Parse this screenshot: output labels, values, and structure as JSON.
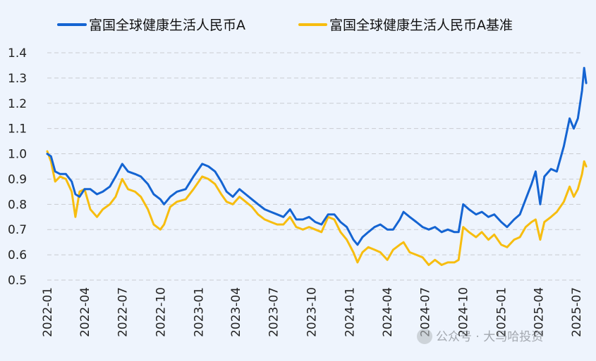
{
  "chart_data": {
    "type": "line",
    "title": "",
    "xlabel": "",
    "ylabel": "",
    "ylim": [
      0.5,
      1.4
    ],
    "yticks": [
      0.5,
      0.6,
      0.7,
      0.8,
      0.9,
      1.0,
      1.1,
      1.2,
      1.3,
      1.4
    ],
    "ytick_labels": [
      "0.5",
      "0.6",
      "0.7",
      "0.8",
      "0.9",
      "1.0",
      "1.1",
      "1.2",
      "1.3",
      "1.4"
    ],
    "xticks": [
      "2022-01",
      "2022-04",
      "2022-07",
      "2022-10",
      "2023-01",
      "2023-04",
      "2023-07",
      "2023-10",
      "2024-01",
      "2024-04",
      "2024-07",
      "2024-10",
      "2025-01",
      "2025-04",
      "2025-07"
    ],
    "grid": "horizontal dashed",
    "legend_position": "top",
    "series": [
      {
        "name": "富国全球健康生活人民币A",
        "color": "#1464d2",
        "points": [
          [
            "2022-01-01",
            1.0
          ],
          [
            "2022-01-10",
            0.99
          ],
          [
            "2022-01-20",
            0.93
          ],
          [
            "2022-02-01",
            0.92
          ],
          [
            "2022-02-15",
            0.92
          ],
          [
            "2022-03-01",
            0.89
          ],
          [
            "2022-03-10",
            0.84
          ],
          [
            "2022-03-20",
            0.83
          ],
          [
            "2022-04-01",
            0.86
          ],
          [
            "2022-04-15",
            0.86
          ],
          [
            "2022-05-01",
            0.84
          ],
          [
            "2022-05-15",
            0.85
          ],
          [
            "2022-06-01",
            0.87
          ],
          [
            "2022-06-15",
            0.91
          ],
          [
            "2022-07-01",
            0.96
          ],
          [
            "2022-07-15",
            0.93
          ],
          [
            "2022-08-01",
            0.92
          ],
          [
            "2022-08-15",
            0.91
          ],
          [
            "2022-09-01",
            0.88
          ],
          [
            "2022-09-15",
            0.84
          ],
          [
            "2022-10-01",
            0.82
          ],
          [
            "2022-10-10",
            0.8
          ],
          [
            "2022-10-25",
            0.83
          ],
          [
            "2022-11-10",
            0.85
          ],
          [
            "2022-12-01",
            0.86
          ],
          [
            "2022-12-20",
            0.91
          ],
          [
            "2023-01-10",
            0.96
          ],
          [
            "2023-01-25",
            0.95
          ],
          [
            "2023-02-10",
            0.93
          ],
          [
            "2023-02-25",
            0.89
          ],
          [
            "2023-03-10",
            0.85
          ],
          [
            "2023-03-25",
            0.83
          ],
          [
            "2023-04-10",
            0.86
          ],
          [
            "2023-04-25",
            0.84
          ],
          [
            "2023-05-10",
            0.82
          ],
          [
            "2023-05-25",
            0.8
          ],
          [
            "2023-06-10",
            0.78
          ],
          [
            "2023-06-25",
            0.77
          ],
          [
            "2023-07-10",
            0.76
          ],
          [
            "2023-07-25",
            0.75
          ],
          [
            "2023-08-10",
            0.78
          ],
          [
            "2023-08-25",
            0.74
          ],
          [
            "2023-09-10",
            0.74
          ],
          [
            "2023-09-25",
            0.75
          ],
          [
            "2023-10-10",
            0.73
          ],
          [
            "2023-10-25",
            0.72
          ],
          [
            "2023-11-10",
            0.76
          ],
          [
            "2023-11-25",
            0.76
          ],
          [
            "2023-12-10",
            0.73
          ],
          [
            "2023-12-25",
            0.71
          ],
          [
            "2024-01-10",
            0.66
          ],
          [
            "2024-01-20",
            0.64
          ],
          [
            "2024-02-01",
            0.67
          ],
          [
            "2024-02-15",
            0.69
          ],
          [
            "2024-03-01",
            0.71
          ],
          [
            "2024-03-15",
            0.72
          ],
          [
            "2024-04-01",
            0.7
          ],
          [
            "2024-04-15",
            0.7
          ],
          [
            "2024-05-01",
            0.74
          ],
          [
            "2024-05-10",
            0.77
          ],
          [
            "2024-05-25",
            0.75
          ],
          [
            "2024-06-10",
            0.73
          ],
          [
            "2024-06-25",
            0.71
          ],
          [
            "2024-07-10",
            0.7
          ],
          [
            "2024-07-25",
            0.71
          ],
          [
            "2024-08-10",
            0.69
          ],
          [
            "2024-08-25",
            0.7
          ],
          [
            "2024-09-10",
            0.69
          ],
          [
            "2024-09-20",
            0.69
          ],
          [
            "2024-10-01",
            0.8
          ],
          [
            "2024-10-15",
            0.78
          ],
          [
            "2024-11-01",
            0.76
          ],
          [
            "2024-11-15",
            0.77
          ],
          [
            "2024-12-01",
            0.75
          ],
          [
            "2024-12-15",
            0.76
          ],
          [
            "2025-01-01",
            0.73
          ],
          [
            "2025-01-15",
            0.71
          ],
          [
            "2025-02-01",
            0.74
          ],
          [
            "2025-02-15",
            0.76
          ],
          [
            "2025-03-01",
            0.82
          ],
          [
            "2025-03-15",
            0.88
          ],
          [
            "2025-03-25",
            0.93
          ],
          [
            "2025-04-05",
            0.8
          ],
          [
            "2025-04-15",
            0.91
          ],
          [
            "2025-05-01",
            0.94
          ],
          [
            "2025-05-15",
            0.93
          ],
          [
            "2025-06-01",
            1.03
          ],
          [
            "2025-06-15",
            1.14
          ],
          [
            "2025-06-25",
            1.1
          ],
          [
            "2025-07-05",
            1.14
          ],
          [
            "2025-07-15",
            1.25
          ],
          [
            "2025-07-20",
            1.34
          ],
          [
            "2025-07-25",
            1.28
          ]
        ]
      },
      {
        "name": "富国全球健康生活人民币A基准",
        "color": "#f7bd0f",
        "points": [
          [
            "2022-01-01",
            1.01
          ],
          [
            "2022-01-10",
            0.97
          ],
          [
            "2022-01-20",
            0.89
          ],
          [
            "2022-02-01",
            0.91
          ],
          [
            "2022-02-15",
            0.9
          ],
          [
            "2022-03-01",
            0.85
          ],
          [
            "2022-03-10",
            0.75
          ],
          [
            "2022-03-20",
            0.85
          ],
          [
            "2022-04-01",
            0.86
          ],
          [
            "2022-04-15",
            0.78
          ],
          [
            "2022-05-01",
            0.75
          ],
          [
            "2022-05-15",
            0.78
          ],
          [
            "2022-06-01",
            0.8
          ],
          [
            "2022-06-15",
            0.83
          ],
          [
            "2022-07-01",
            0.9
          ],
          [
            "2022-07-15",
            0.86
          ],
          [
            "2022-08-01",
            0.85
          ],
          [
            "2022-08-15",
            0.83
          ],
          [
            "2022-09-01",
            0.78
          ],
          [
            "2022-09-15",
            0.72
          ],
          [
            "2022-10-01",
            0.7
          ],
          [
            "2022-10-10",
            0.72
          ],
          [
            "2022-10-25",
            0.79
          ],
          [
            "2022-11-10",
            0.81
          ],
          [
            "2022-12-01",
            0.82
          ],
          [
            "2022-12-20",
            0.86
          ],
          [
            "2023-01-10",
            0.91
          ],
          [
            "2023-01-25",
            0.9
          ],
          [
            "2023-02-10",
            0.88
          ],
          [
            "2023-02-25",
            0.84
          ],
          [
            "2023-03-10",
            0.81
          ],
          [
            "2023-03-25",
            0.8
          ],
          [
            "2023-04-10",
            0.83
          ],
          [
            "2023-04-25",
            0.81
          ],
          [
            "2023-05-10",
            0.79
          ],
          [
            "2023-05-25",
            0.76
          ],
          [
            "2023-06-10",
            0.74
          ],
          [
            "2023-06-25",
            0.73
          ],
          [
            "2023-07-10",
            0.72
          ],
          [
            "2023-07-25",
            0.72
          ],
          [
            "2023-08-10",
            0.75
          ],
          [
            "2023-08-25",
            0.71
          ],
          [
            "2023-09-10",
            0.7
          ],
          [
            "2023-09-25",
            0.71
          ],
          [
            "2023-10-10",
            0.7
          ],
          [
            "2023-10-25",
            0.69
          ],
          [
            "2023-11-10",
            0.75
          ],
          [
            "2023-11-25",
            0.74
          ],
          [
            "2023-12-10",
            0.69
          ],
          [
            "2023-12-25",
            0.66
          ],
          [
            "2024-01-10",
            0.61
          ],
          [
            "2024-01-20",
            0.57
          ],
          [
            "2024-02-01",
            0.61
          ],
          [
            "2024-02-15",
            0.63
          ],
          [
            "2024-03-01",
            0.62
          ],
          [
            "2024-03-15",
            0.61
          ],
          [
            "2024-04-01",
            0.58
          ],
          [
            "2024-04-15",
            0.62
          ],
          [
            "2024-05-01",
            0.64
          ],
          [
            "2024-05-10",
            0.65
          ],
          [
            "2024-05-25",
            0.61
          ],
          [
            "2024-06-10",
            0.6
          ],
          [
            "2024-06-25",
            0.59
          ],
          [
            "2024-07-10",
            0.56
          ],
          [
            "2024-07-25",
            0.58
          ],
          [
            "2024-08-10",
            0.56
          ],
          [
            "2024-08-25",
            0.57
          ],
          [
            "2024-09-10",
            0.57
          ],
          [
            "2024-09-20",
            0.58
          ],
          [
            "2024-10-01",
            0.71
          ],
          [
            "2024-10-15",
            0.69
          ],
          [
            "2024-11-01",
            0.67
          ],
          [
            "2024-11-15",
            0.69
          ],
          [
            "2024-12-01",
            0.66
          ],
          [
            "2024-12-15",
            0.68
          ],
          [
            "2025-01-01",
            0.64
          ],
          [
            "2025-01-15",
            0.63
          ],
          [
            "2025-02-01",
            0.66
          ],
          [
            "2025-02-15",
            0.67
          ],
          [
            "2025-03-01",
            0.71
          ],
          [
            "2025-03-15",
            0.73
          ],
          [
            "2025-03-25",
            0.74
          ],
          [
            "2025-04-05",
            0.66
          ],
          [
            "2025-04-15",
            0.73
          ],
          [
            "2025-05-01",
            0.75
          ],
          [
            "2025-05-15",
            0.77
          ],
          [
            "2025-06-01",
            0.81
          ],
          [
            "2025-06-15",
            0.87
          ],
          [
            "2025-06-25",
            0.83
          ],
          [
            "2025-07-05",
            0.86
          ],
          [
            "2025-07-15",
            0.92
          ],
          [
            "2025-07-20",
            0.97
          ],
          [
            "2025-07-25",
            0.95
          ]
        ]
      }
    ]
  },
  "watermark": {
    "text": "公众号 · 大马哈投资"
  }
}
